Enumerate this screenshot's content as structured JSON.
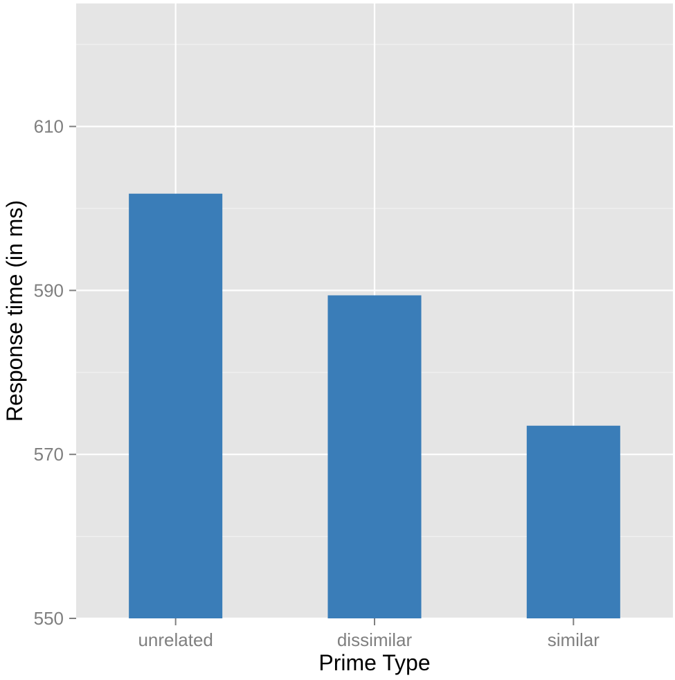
{
  "chart_data": {
    "type": "bar",
    "title": "",
    "xlabel": "Prime Type",
    "ylabel": "Response time (in ms)",
    "categories": [
      "unrelated",
      "dissimilar",
      "similar"
    ],
    "values": [
      601.8,
      589.4,
      573.5
    ],
    "ylim": [
      550,
      625
    ],
    "yticks": [
      550,
      570,
      590,
      610
    ],
    "grid": true,
    "legend": "none",
    "colors": {
      "bar": "#3a7db8",
      "panel": "#e5e5e5",
      "grid_major": "#ffffff",
      "grid_minor": "#f2f2f2"
    }
  }
}
